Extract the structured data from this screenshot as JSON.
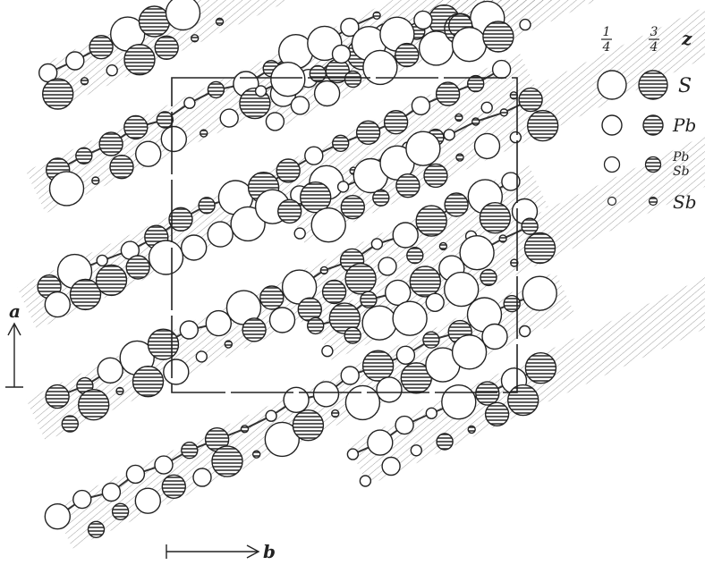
{
  "legend": {
    "z_header": "z",
    "quarter": "1/4",
    "three_quarter": "3/4",
    "quarter_num": "1",
    "quarter_den": "4",
    "three_quarter_num": "3",
    "three_quarter_den": "4",
    "rows": [
      {
        "label": "S"
      },
      {
        "label": "Pb"
      },
      {
        "label_top": "Pb",
        "label_bottom": "Sb"
      },
      {
        "label": "Sb"
      }
    ]
  },
  "axes": {
    "a_label": "a",
    "b_label": "b"
  },
  "colors": {
    "ink": "#222222",
    "hatch": "#9a9a9a",
    "paper": "#ffffff"
  }
}
